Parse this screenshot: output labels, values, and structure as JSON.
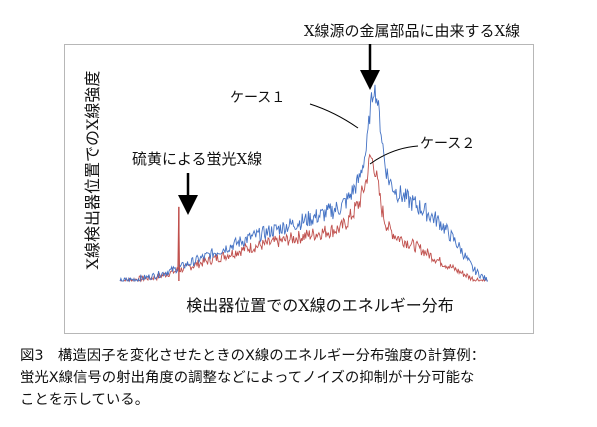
{
  "chart_data": {
    "type": "line",
    "title": "",
    "ylabel": "X線検出器位置でのX線強度",
    "xlabel": "検出器位置でのX線のエネルギー分布",
    "series": [
      {
        "name": "ケース１",
        "color": "#4472c4",
        "x": [
          0,
          5,
          10,
          15,
          20,
          25,
          30,
          35,
          40,
          45,
          50,
          55,
          60,
          62,
          65,
          67,
          68,
          69,
          70,
          71,
          72,
          73,
          75,
          78,
          82,
          87,
          92,
          96,
          100
        ],
        "y": [
          0,
          1,
          3,
          6,
          10,
          14,
          18,
          22,
          25,
          28,
          31,
          34,
          38,
          42,
          52,
          68,
          88,
          100,
          92,
          76,
          60,
          52,
          46,
          42,
          37,
          30,
          18,
          6,
          0
        ]
      },
      {
        "name": "ケース２",
        "color": "#c0504d",
        "x": [
          0,
          5,
          10,
          15,
          20,
          25,
          30,
          35,
          40,
          45,
          50,
          55,
          60,
          62,
          65,
          67,
          68,
          69,
          70,
          71,
          72,
          73,
          75,
          78,
          82,
          87,
          92,
          96,
          100
        ],
        "y": [
          0,
          1,
          2,
          5,
          8,
          11,
          14,
          17,
          19,
          21,
          23,
          25,
          27,
          31,
          40,
          52,
          64,
          60,
          50,
          38,
          31,
          27,
          23,
          20,
          16,
          10,
          5,
          1,
          0
        ]
      }
    ],
    "annotations": [
      {
        "text": "X線源の金属部品に由来するX線",
        "x": 69
      },
      {
        "text": "ケース１",
        "x": 69
      },
      {
        "text": "ケース２",
        "x": 68
      },
      {
        "text": "硫黄による蛍光X線",
        "x": 16
      }
    ],
    "spike": {
      "series": "ケース２",
      "x": 16,
      "y": 38
    }
  },
  "caption": [
    "図3　構造因子を変化させたときのX線のエネルギー分布強度の計算例：",
    "蛍光X線信号の射出角度の調整などによってノイズの抑制が十分可能な",
    "ことを示している。"
  ]
}
